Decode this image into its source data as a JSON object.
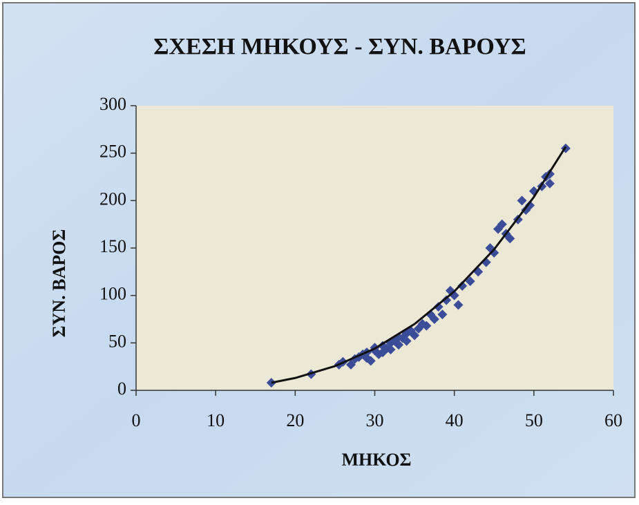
{
  "chart_data": {
    "type": "scatter",
    "title": "ΣΧΕΣΗ ΜΗΚΟΥΣ - ΣΥΝ. ΒΑΡΟΥΣ",
    "xlabel": "ΜΗΚΟΣ",
    "ylabel": "ΣΥΝ. ΒΑΡΟΣ",
    "xlim": [
      0,
      60
    ],
    "ylim": [
      0,
      300
    ],
    "xticks": [
      0,
      10,
      20,
      30,
      40,
      50,
      60
    ],
    "yticks": [
      0,
      50,
      100,
      150,
      200,
      250,
      300
    ],
    "grid": false,
    "color": "#3b4c99",
    "x": [
      17,
      22,
      25.5,
      26,
      27,
      27.5,
      28,
      28.5,
      29,
      29,
      29.5,
      30,
      30,
      30.5,
      31,
      31,
      31.5,
      32,
      32,
      32.5,
      33,
      33,
      33.5,
      34,
      34,
      34.5,
      35,
      35.5,
      36,
      36.5,
      37,
      37.5,
      38,
      38.5,
      39,
      39.5,
      40,
      40.5,
      41,
      42,
      43,
      44,
      44.5,
      45,
      45.5,
      46,
      46.5,
      47,
      48,
      48.5,
      49,
      49.5,
      50,
      51,
      51.5,
      52,
      52,
      54
    ],
    "values": [
      8,
      17,
      27,
      30,
      27,
      33,
      35,
      38,
      34,
      40,
      31,
      42,
      45,
      38,
      47,
      40,
      44,
      50,
      43,
      52,
      48,
      56,
      55,
      60,
      52,
      63,
      58,
      65,
      70,
      68,
      80,
      75,
      88,
      80,
      95,
      105,
      100,
      90,
      110,
      115,
      125,
      135,
      150,
      145,
      170,
      175,
      165,
      160,
      180,
      200,
      190,
      195,
      210,
      215,
      225,
      218,
      228,
      255
    ],
    "trendline": {
      "color": "#111111",
      "x": [
        17,
        20,
        25,
        30,
        35,
        40,
        45,
        50,
        54
      ],
      "y": [
        8,
        13,
        25.5,
        44,
        69.9,
        104.3,
        148.5,
        203.8,
        256.7
      ]
    }
  }
}
